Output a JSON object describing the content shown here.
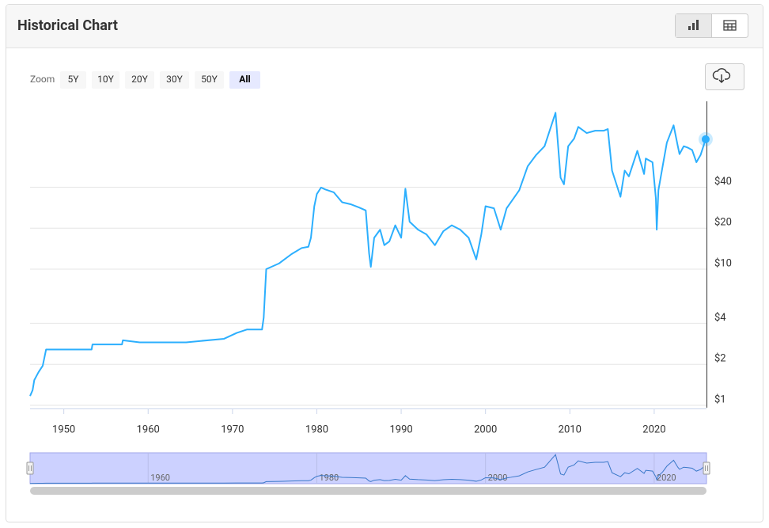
{
  "header": {
    "title": "Historical Chart"
  },
  "controls": {
    "zoom_label": "Zoom",
    "zoom_options": [
      "5Y",
      "10Y",
      "20Y",
      "30Y",
      "50Y",
      "All"
    ],
    "selected": "All"
  },
  "chart_data": {
    "type": "line",
    "color": "#2caffe",
    "log_y": true,
    "grid": true,
    "x": [
      1946.0,
      1946.3,
      1946.5,
      1947.0,
      1947.5,
      1947.9,
      1953.3,
      1953.4,
      1956.9,
      1957.0,
      1959.0,
      1964.5,
      1969.0,
      1970.5,
      1971.7,
      1973.5,
      1973.7,
      1974.0,
      1975.5,
      1976.0,
      1977.0,
      1978.2,
      1979.0,
      1979.3,
      1979.7,
      1980.0,
      1980.5,
      1981.0,
      1982.0,
      1983.0,
      1984.0,
      1985.0,
      1985.8,
      1986.2,
      1986.4,
      1986.8,
      1987.5,
      1988.0,
      1988.6,
      1989.3,
      1990.0,
      1990.5,
      1991.0,
      1992.0,
      1993.0,
      1994.0,
      1995.0,
      1996.0,
      1997.0,
      1998.0,
      1998.9,
      1999.5,
      2000.0,
      2001.0,
      2001.8,
      2002.5,
      2003.0,
      2004.0,
      2005.0,
      2006.0,
      2007.0,
      2008.3,
      2008.9,
      2009.3,
      2009.8,
      2010.5,
      2011.0,
      2012.0,
      2013.0,
      2014.0,
      2014.5,
      2015.0,
      2016.0,
      2016.5,
      2017.0,
      2018.0,
      2018.8,
      2019.0,
      2019.8,
      2020.2,
      2020.3,
      2020.5,
      2021.0,
      2021.5,
      2022.3,
      2022.8,
      2023.0,
      2023.5,
      2024.0,
      2024.5,
      2025.0,
      2025.5,
      2026.1
    ],
    "values": [
      1.17,
      1.29,
      1.53,
      1.75,
      1.95,
      2.57,
      2.57,
      2.8,
      2.8,
      3.0,
      2.9,
      2.9,
      3.08,
      3.4,
      3.6,
      3.6,
      4.4,
      10,
      11,
      11.6,
      12.9,
      14.3,
      14.6,
      17,
      29,
      35.6,
      39.8,
      38.5,
      36.7,
      31,
      30,
      28.4,
      27,
      13,
      10.4,
      17,
      19.5,
      15,
      16,
      21,
      17,
      39,
      22.3,
      19.5,
      18,
      15,
      19,
      21,
      19.5,
      17,
      11.8,
      18,
      29,
      28,
      19.5,
      28,
      31,
      38,
      57,
      69,
      80,
      141,
      47,
      42,
      80,
      91,
      111,
      100,
      104,
      104,
      107,
      53,
      34,
      53,
      48,
      74,
      50,
      65,
      61,
      33,
      19.5,
      38,
      57,
      85,
      114,
      80,
      70,
      80,
      78,
      75,
      61,
      69,
      90
    ],
    "xlim": [
      1946,
      2026.2
    ],
    "xticks": [
      1950,
      1960,
      1970,
      1980,
      1990,
      2000,
      2010,
      2020
    ],
    "ylim": [
      0.96,
      171
    ],
    "yticks": [
      {
        "value": 1,
        "label": "$1"
      },
      {
        "value": 2,
        "label": "$2"
      },
      {
        "value": 4,
        "label": "$4"
      },
      {
        "value": 10,
        "label": "$10"
      },
      {
        "value": 20,
        "label": "$20"
      },
      {
        "value": 40,
        "label": "$40"
      }
    ],
    "navigator": {
      "xticks": [
        1960,
        1980,
        2000,
        2020
      ],
      "ylim": [
        0,
        150
      ]
    }
  }
}
